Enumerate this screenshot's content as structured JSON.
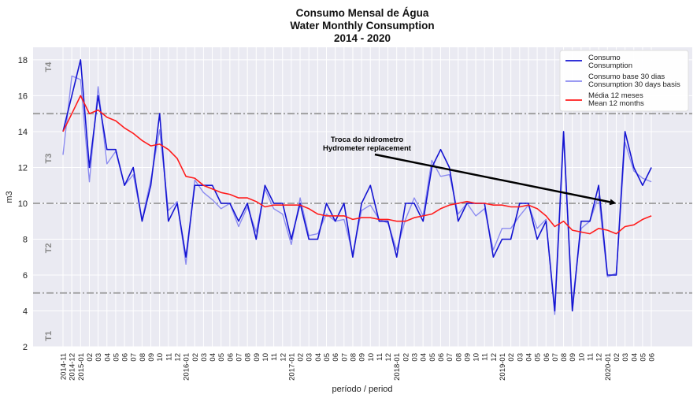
{
  "chart_data": {
    "type": "line",
    "title_lines": [
      "Consumo Mensal de Água",
      "Water Monthly Consumption",
      "2014 - 2020"
    ],
    "xlabel": "período / period",
    "ylabel": "m3",
    "ylim": [
      2,
      18.7
    ],
    "yticks": [
      "2",
      "4",
      "6",
      "8",
      "10",
      "12",
      "14",
      "16",
      "18"
    ],
    "grid": true,
    "legend_position": "top-right",
    "x": [
      "2014-11",
      "2014-12",
      "2015-01",
      "02",
      "03",
      "04",
      "05",
      "06",
      "07",
      "08",
      "09",
      "10",
      "11",
      "12",
      "2016-01",
      "02",
      "03",
      "04",
      "05",
      "06",
      "07",
      "08",
      "09",
      "10",
      "11",
      "12",
      "2017-01",
      "02",
      "03",
      "04",
      "05",
      "06",
      "07",
      "08",
      "09",
      "10",
      "11",
      "12",
      "2018-01",
      "02",
      "03",
      "04",
      "05",
      "06",
      "07",
      "08",
      "09",
      "10",
      "11",
      "12",
      "2019-01",
      "02",
      "03",
      "04",
      "05",
      "06",
      "07",
      "08",
      "09",
      "10",
      "11",
      "12",
      "2020-01",
      "02",
      "03",
      "04",
      "05",
      "06"
    ],
    "series": [
      {
        "legend": [
          "Consumo",
          "Consumption"
        ],
        "color": "#1414d2",
        "values": [
          14,
          16,
          18,
          12,
          16,
          13,
          13,
          11,
          12,
          9,
          11,
          15,
          9,
          10,
          7,
          11,
          11,
          11,
          10,
          10,
          9,
          10,
          8,
          11,
          10,
          10,
          8,
          10,
          8,
          8,
          10,
          9,
          10,
          7,
          10,
          11,
          9,
          9,
          7,
          10,
          10,
          9,
          12,
          13,
          12,
          9,
          10,
          10,
          10,
          7,
          8,
          8,
          10,
          10,
          8,
          9,
          4,
          14,
          4,
          9,
          9,
          11,
          6,
          6,
          14,
          12,
          11,
          12
        ]
      },
      {
        "legend": [
          "Consumo base 30 dias",
          "Consumption 30 days basis"
        ],
        "color": "#8c8cf0",
        "values": [
          12.7,
          17.1,
          16.9,
          11.2,
          16.5,
          12.2,
          12.9,
          11.0,
          11.6,
          9.1,
          11.3,
          14.1,
          9.6,
          10.1,
          6.6,
          11.3,
          10.6,
          10.2,
          9.7,
          10.0,
          8.7,
          9.8,
          8.4,
          10.8,
          9.7,
          9.4,
          7.7,
          10.3,
          8.2,
          8.3,
          9.4,
          9.0,
          9.1,
          7.2,
          9.6,
          9.9,
          9.1,
          8.9,
          7.4,
          9.1,
          10.3,
          9.3,
          12.4,
          11.5,
          11.6,
          9.4,
          10.0,
          9.3,
          9.7,
          7.4,
          8.6,
          8.6,
          9.3,
          9.9,
          8.6,
          9.1,
          3.8,
          13.7,
          4.4,
          8.6,
          9.0,
          10.4,
          5.9,
          6.1,
          13.4,
          11.8,
          11.4,
          11.2
        ]
      },
      {
        "legend": [
          "Média 12 meses",
          "Mean 12 months"
        ],
        "color": "#ff1c1c",
        "values": [
          14.0,
          15.0,
          16.0,
          15.0,
          15.2,
          14.8,
          14.6,
          14.2,
          13.9,
          13.5,
          13.2,
          13.3,
          13.0,
          12.5,
          11.5,
          11.4,
          11.0,
          10.8,
          10.6,
          10.5,
          10.3,
          10.3,
          10.1,
          9.8,
          9.9,
          9.9,
          9.9,
          9.9,
          9.7,
          9.4,
          9.3,
          9.3,
          9.3,
          9.1,
          9.2,
          9.2,
          9.1,
          9.1,
          9.0,
          9.0,
          9.2,
          9.3,
          9.4,
          9.7,
          9.9,
          10.0,
          10.1,
          10.0,
          10.0,
          9.9,
          9.9,
          9.8,
          9.8,
          9.9,
          9.7,
          9.3,
          8.7,
          9.0,
          8.5,
          8.4,
          8.3,
          8.6,
          8.5,
          8.3,
          8.7,
          8.8,
          9.1,
          9.3
        ]
      }
    ],
    "thresholds": [
      5,
      10,
      15
    ],
    "tiers": [
      {
        "label": "T1",
        "y": 2.6
      },
      {
        "label": "T2",
        "y": 7.5
      },
      {
        "label": "T3",
        "y": 12.5
      },
      {
        "label": "T4",
        "y": 17.6
      }
    ],
    "annotation": {
      "lines": [
        "Troca do hidrometro",
        "Hydrometer replacement"
      ],
      "x": "02",
      "y": 10
    }
  }
}
